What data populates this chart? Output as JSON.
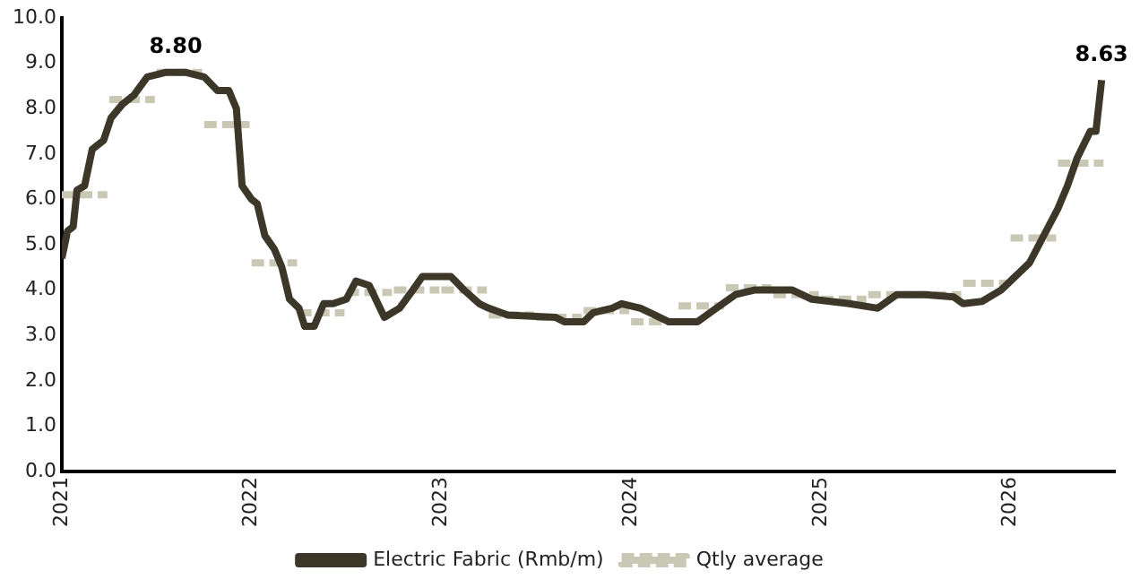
{
  "chart_data": {
    "type": "line",
    "legend": "bottom",
    "grid": false,
    "marker": "none",
    "xlim": [
      2021,
      2026.55
    ],
    "xticks": [
      2021,
      2022,
      2023,
      2024,
      2025,
      2026
    ],
    "ylim": [
      0,
      10
    ],
    "yticks": [
      {
        "value": 0,
        "label": "0.0"
      },
      {
        "value": 1,
        "label": "1.0"
      },
      {
        "value": 2,
        "label": "2.0"
      },
      {
        "value": 3,
        "label": "3.0"
      },
      {
        "value": 4,
        "label": "4.0"
      },
      {
        "value": 5,
        "label": "5.0"
      },
      {
        "value": 6,
        "label": "6.0"
      },
      {
        "value": 7,
        "label": "7.0"
      },
      {
        "value": 8,
        "label": "8.0"
      },
      {
        "value": 9,
        "label": "9.0"
      },
      {
        "value": 10,
        "label": "10.0"
      }
    ],
    "annotations": [
      {
        "text": "8.80",
        "x": 2021.6,
        "y": 8.8
      },
      {
        "text": "8.63",
        "x": 2026.48,
        "y": 8.63
      }
    ],
    "series": [
      {
        "name": "Electric Fabric (Rmb/m)",
        "color": "#3d3729",
        "line_style": "solid",
        "x": [
          2021,
          2021.03,
          2021.06,
          2021.08,
          2021.12,
          2021.16,
          2021.22,
          2021.26,
          2021.32,
          2021.38,
          2021.45,
          2021.55,
          2021.65,
          2021.75,
          2021.82,
          2021.88,
          2021.92,
          2021.95,
          2022,
          2022.03,
          2022.07,
          2022.12,
          2022.16,
          2022.2,
          2022.25,
          2022.28,
          2022.33,
          2022.38,
          2022.43,
          2022.5,
          2022.55,
          2022.62,
          2022.7,
          2022.78,
          2022.85,
          2022.9,
          2022.95,
          2023.05,
          2023.12,
          2023.2,
          2023.25,
          2023.35,
          2023.6,
          2023.65,
          2023.75,
          2023.8,
          2023.9,
          2023.95,
          2024.05,
          2024.1,
          2024.2,
          2024.35,
          2024.45,
          2024.55,
          2024.65,
          2024.85,
          2024.95,
          2025.15,
          2025.3,
          2025.4,
          2025.55,
          2025.7,
          2025.75,
          2025.85,
          2025.95,
          2026,
          2026.05,
          2026.1,
          2026.15,
          2026.2,
          2026.25,
          2026.3,
          2026.35,
          2026.42,
          2026.45,
          2026.48
        ],
        "values": [
          4.7,
          5.3,
          5.4,
          6.2,
          6.3,
          7.1,
          7.3,
          7.8,
          8.1,
          8.3,
          8.7,
          8.8,
          8.8,
          8.7,
          8.4,
          8.4,
          8.0,
          6.3,
          6.0,
          5.9,
          5.2,
          4.9,
          4.5,
          3.8,
          3.6,
          3.2,
          3.2,
          3.7,
          3.7,
          3.8,
          4.2,
          4.1,
          3.4,
          3.6,
          4.0,
          4.3,
          4.3,
          4.3,
          4.0,
          3.7,
          3.6,
          3.45,
          3.4,
          3.3,
          3.3,
          3.5,
          3.6,
          3.7,
          3.6,
          3.5,
          3.3,
          3.3,
          3.6,
          3.9,
          4.0,
          4.0,
          3.8,
          3.7,
          3.6,
          3.9,
          3.9,
          3.85,
          3.7,
          3.75,
          4.0,
          4.2,
          4.4,
          4.6,
          5.0,
          5.4,
          5.8,
          6.3,
          6.9,
          7.5,
          7.5,
          8.63
        ]
      },
      {
        "name": "Qtly average",
        "color": "#c9c8b4",
        "line_style": "dashed",
        "x": [
          2021,
          2021.24,
          2021.245,
          2021.25,
          2021.49,
          2021.495,
          2021.5,
          2021.74,
          2021.745,
          2021.75,
          2021.99,
          2021.995,
          2022,
          2022.24,
          2022.245,
          2022.25,
          2022.49,
          2022.495,
          2022.5,
          2022.74,
          2022.745,
          2022.75,
          2022.99,
          2022.995,
          2023,
          2023.24,
          2023.245,
          2023.25,
          2023.49,
          2023.495,
          2023.5,
          2023.74,
          2023.745,
          2023.75,
          2023.99,
          2023.995,
          2024,
          2024.24,
          2024.245,
          2024.25,
          2024.49,
          2024.495,
          2024.5,
          2024.74,
          2024.745,
          2024.75,
          2024.99,
          2024.995,
          2025,
          2025.24,
          2025.245,
          2025.25,
          2025.49,
          2025.495,
          2025.5,
          2025.74,
          2025.745,
          2025.75,
          2025.99,
          2025.995,
          2026,
          2026.24,
          2026.245,
          2026.25,
          2026.49
        ],
        "values": [
          6.1,
          6.1,
          null,
          8.2,
          8.2,
          null,
          8.8,
          8.8,
          null,
          7.65,
          7.65,
          null,
          4.6,
          4.6,
          null,
          3.5,
          3.5,
          null,
          3.95,
          3.95,
          null,
          4.0,
          4.0,
          null,
          4.0,
          4.0,
          null,
          3.45,
          3.45,
          null,
          3.4,
          3.4,
          null,
          3.55,
          3.55,
          null,
          3.3,
          3.3,
          null,
          3.65,
          3.65,
          null,
          4.05,
          4.05,
          null,
          3.9,
          3.9,
          null,
          3.8,
          3.8,
          null,
          3.9,
          3.9,
          null,
          3.9,
          3.9,
          null,
          4.15,
          4.15,
          null,
          5.15,
          5.15,
          null,
          6.8,
          6.8
        ]
      }
    ]
  }
}
